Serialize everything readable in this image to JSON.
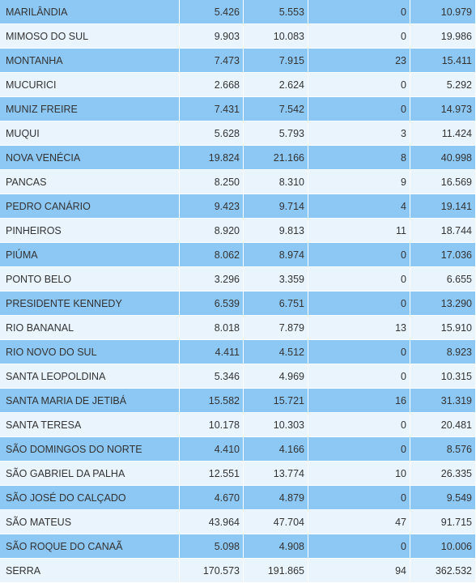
{
  "rows": [
    {
      "name": "MARILÂNDIA",
      "a": "5.426",
      "b": "5.553",
      "c": "0",
      "d": "10.979"
    },
    {
      "name": "MIMOSO DO SUL",
      "a": "9.903",
      "b": "10.083",
      "c": "0",
      "d": "19.986"
    },
    {
      "name": "MONTANHA",
      "a": "7.473",
      "b": "7.915",
      "c": "23",
      "d": "15.411"
    },
    {
      "name": "MUCURICI",
      "a": "2.668",
      "b": "2.624",
      "c": "0",
      "d": "5.292"
    },
    {
      "name": "MUNIZ FREIRE",
      "a": "7.431",
      "b": "7.542",
      "c": "0",
      "d": "14.973"
    },
    {
      "name": "MUQUI",
      "a": "5.628",
      "b": "5.793",
      "c": "3",
      "d": "11.424"
    },
    {
      "name": "NOVA VENÉCIA",
      "a": "19.824",
      "b": "21.166",
      "c": "8",
      "d": "40.998"
    },
    {
      "name": "PANCAS",
      "a": "8.250",
      "b": "8.310",
      "c": "9",
      "d": "16.569"
    },
    {
      "name": "PEDRO CANÁRIO",
      "a": "9.423",
      "b": "9.714",
      "c": "4",
      "d": "19.141"
    },
    {
      "name": "PINHEIROS",
      "a": "8.920",
      "b": "9.813",
      "c": "11",
      "d": "18.744"
    },
    {
      "name": "PIÚMA",
      "a": "8.062",
      "b": "8.974",
      "c": "0",
      "d": "17.036"
    },
    {
      "name": "PONTO BELO",
      "a": "3.296",
      "b": "3.359",
      "c": "0",
      "d": "6.655"
    },
    {
      "name": "PRESIDENTE KENNEDY",
      "a": "6.539",
      "b": "6.751",
      "c": "0",
      "d": "13.290"
    },
    {
      "name": "RIO BANANAL",
      "a": "8.018",
      "b": "7.879",
      "c": "13",
      "d": "15.910"
    },
    {
      "name": "RIO NOVO DO SUL",
      "a": "4.411",
      "b": "4.512",
      "c": "0",
      "d": "8.923"
    },
    {
      "name": "SANTA LEOPOLDINA",
      "a": "5.346",
      "b": "4.969",
      "c": "0",
      "d": "10.315"
    },
    {
      "name": "SANTA MARIA DE JETIBÁ",
      "a": "15.582",
      "b": "15.721",
      "c": "16",
      "d": "31.319"
    },
    {
      "name": "SANTA TERESA",
      "a": "10.178",
      "b": "10.303",
      "c": "0",
      "d": "20.481"
    },
    {
      "name": "SÃO DOMINGOS DO NORTE",
      "a": "4.410",
      "b": "4.166",
      "c": "0",
      "d": "8.576"
    },
    {
      "name": "SÃO GABRIEL DA PALHA",
      "a": "12.551",
      "b": "13.774",
      "c": "10",
      "d": "26.335"
    },
    {
      "name": "SÃO JOSÉ DO CALÇADO",
      "a": "4.670",
      "b": "4.879",
      "c": "0",
      "d": "9.549"
    },
    {
      "name": "SÃO MATEUS",
      "a": "43.964",
      "b": "47.704",
      "c": "47",
      "d": "91.715"
    },
    {
      "name": "SÃO ROQUE DO CANAÃ",
      "a": "5.098",
      "b": "4.908",
      "c": "0",
      "d": "10.006"
    },
    {
      "name": "SERRA",
      "a": "170.573",
      "b": "191.865",
      "c": "94",
      "d": "362.532"
    }
  ]
}
